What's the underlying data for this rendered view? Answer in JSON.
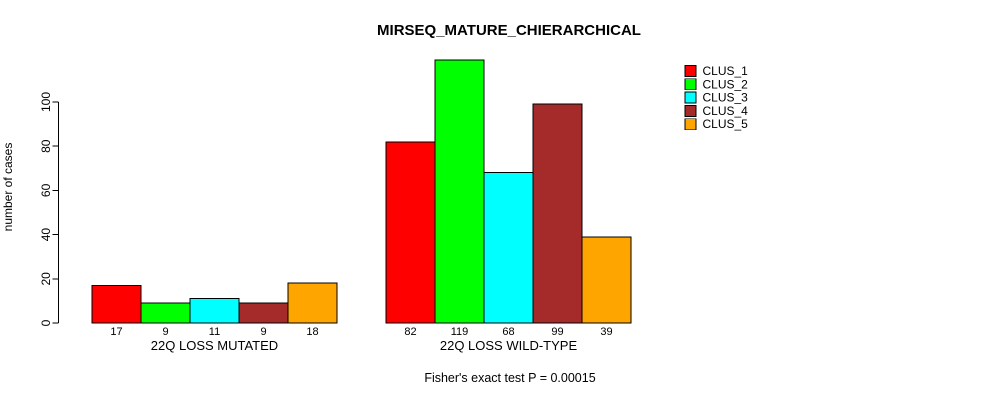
{
  "chart_data": {
    "type": "bar",
    "title": "MIRSEQ_MATURE_CHIERARCHICAL",
    "xlabel": "",
    "ylabel": "number of cases",
    "ylim": [
      0,
      100
    ],
    "yticks": [
      0,
      20,
      40,
      60,
      80,
      100
    ],
    "grid": false,
    "bar_style": "grouped",
    "bar_border_color": "#000000",
    "value_labels_shown": true,
    "categories": [
      "22Q LOSS MUTATED",
      "22Q LOSS WILD-TYPE"
    ],
    "series": [
      {
        "name": "CLUS_1",
        "color": "#ff0000",
        "values": [
          17,
          82
        ]
      },
      {
        "name": "CLUS_2",
        "color": "#00ff00",
        "values": [
          9,
          119
        ]
      },
      {
        "name": "CLUS_3",
        "color": "#00ffff",
        "values": [
          11,
          68
        ]
      },
      {
        "name": "CLUS_4",
        "color": "#a52a2a",
        "values": [
          9,
          99
        ]
      },
      {
        "name": "CLUS_5",
        "color": "#ffa500",
        "values": [
          18,
          39
        ]
      }
    ],
    "legend": {
      "position": "top-right",
      "entries": [
        "CLUS_1",
        "CLUS_2",
        "CLUS_3",
        "CLUS_4",
        "CLUS_5"
      ]
    },
    "annotation": "Fisher's exact test P = 0.00015"
  }
}
